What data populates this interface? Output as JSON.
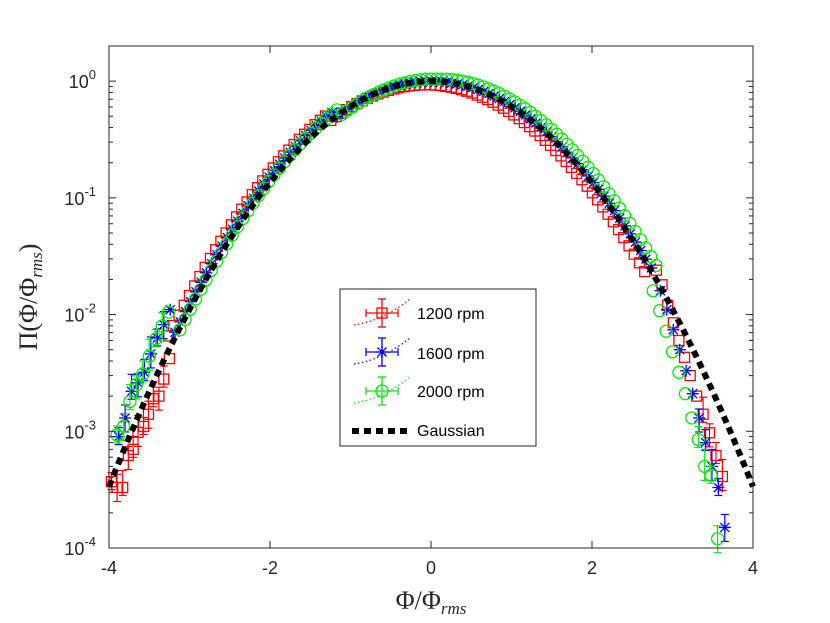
{
  "chart_data": {
    "type": "scatter",
    "title": "",
    "xlabel": "Φ/Φ_rms",
    "xlabel_main": "Φ/Φ",
    "xlabel_sub": "rms",
    "ylabel": "Π(Φ/Φ_rms)",
    "ylabel_main": "Π(Φ/Φ",
    "ylabel_sub": "rms",
    "ylabel_close": ")",
    "xlim": [
      -4,
      4
    ],
    "ylim": [
      0.0001,
      2
    ],
    "yscale": "log",
    "xticks": [
      {
        "value": -4,
        "label": "-4"
      },
      {
        "value": -2,
        "label": "-2"
      },
      {
        "value": 0,
        "label": "0"
      },
      {
        "value": 2,
        "label": "2"
      },
      {
        "value": 4,
        "label": "4"
      }
    ],
    "yticks": [
      {
        "value": 0.0001,
        "base": "10",
        "exp": "-4"
      },
      {
        "value": 0.001,
        "base": "10",
        "exp": "-3"
      },
      {
        "value": 0.01,
        "base": "10",
        "exp": "-2"
      },
      {
        "value": 0.1,
        "base": "10",
        "exp": "-1"
      },
      {
        "value": 1,
        "base": "10",
        "exp": "0"
      }
    ],
    "legend_position": "center",
    "series": [
      {
        "name": "1200 rpm",
        "label": "1200 rpm",
        "color": "#ff0000",
        "marker": "square",
        "x_offset": -0.06,
        "y_factor": 0.93,
        "extra_points": [
          {
            "x": -3.97,
            "y": 0.00037
          },
          {
            "x": -3.9,
            "y": 0.00033
          },
          {
            "x": -3.83,
            "y": 0.00033
          },
          {
            "x": -3.76,
            "y": 0.00062
          },
          {
            "x": -3.7,
            "y": 0.0007
          },
          {
            "x": -3.64,
            "y": 0.00098
          },
          {
            "x": -3.57,
            "y": 0.0011
          },
          {
            "x": -3.51,
            "y": 0.0014
          },
          {
            "x": -3.45,
            "y": 0.0019
          },
          {
            "x": -3.38,
            "y": 0.002
          },
          {
            "x": -3.32,
            "y": 0.0028
          },
          {
            "x": -3.25,
            "y": 0.0042
          },
          {
            "x": 2.8,
            "y": 0.024
          },
          {
            "x": 2.87,
            "y": 0.018
          },
          {
            "x": 2.94,
            "y": 0.012
          },
          {
            "x": 3.01,
            "y": 0.0085
          },
          {
            "x": 3.08,
            "y": 0.006
          },
          {
            "x": 3.15,
            "y": 0.0043
          },
          {
            "x": 3.22,
            "y": 0.003
          },
          {
            "x": 3.3,
            "y": 0.002
          },
          {
            "x": 3.38,
            "y": 0.0014
          },
          {
            "x": 3.46,
            "y": 0.00097
          },
          {
            "x": 3.54,
            "y": 0.00062
          },
          {
            "x": 3.62,
            "y": 0.00041
          }
        ]
      },
      {
        "name": "1600 rpm",
        "label": "1600 rpm",
        "color": "#0000ff",
        "marker": "asterisk",
        "x_offset": 0.02,
        "y_factor": 1.0,
        "extra_points": [
          {
            "x": -3.88,
            "y": 0.0009
          },
          {
            "x": -3.8,
            "y": 0.0013
          },
          {
            "x": -3.72,
            "y": 0.0022
          },
          {
            "x": -3.64,
            "y": 0.0026
          },
          {
            "x": -3.56,
            "y": 0.0032
          },
          {
            "x": -3.48,
            "y": 0.0046
          },
          {
            "x": -3.4,
            "y": 0.0063
          },
          {
            "x": -3.32,
            "y": 0.0082
          },
          {
            "x": -3.24,
            "y": 0.011
          },
          {
            "x": 2.85,
            "y": 0.016
          },
          {
            "x": 2.93,
            "y": 0.011
          },
          {
            "x": 3.01,
            "y": 0.0074
          },
          {
            "x": 3.09,
            "y": 0.005
          },
          {
            "x": 3.17,
            "y": 0.0033
          },
          {
            "x": 3.25,
            "y": 0.0021
          },
          {
            "x": 3.33,
            "y": 0.0013
          },
          {
            "x": 3.41,
            "y": 0.0008
          },
          {
            "x": 3.49,
            "y": 0.0005
          },
          {
            "x": 3.57,
            "y": 0.00033
          },
          {
            "x": 3.65,
            "y": 0.00015
          }
        ]
      },
      {
        "name": "2000 rpm",
        "label": "2000 rpm",
        "color": "#00ee00",
        "marker": "circle",
        "x_offset": 0.08,
        "y_factor": 1.05,
        "extra_points": [
          {
            "x": -3.9,
            "y": 0.00093
          },
          {
            "x": -3.82,
            "y": 0.0011
          },
          {
            "x": -3.74,
            "y": 0.0018
          },
          {
            "x": -3.66,
            "y": 0.0025
          },
          {
            "x": -3.58,
            "y": 0.0031
          },
          {
            "x": -3.5,
            "y": 0.0044
          },
          {
            "x": -3.42,
            "y": 0.0062
          },
          {
            "x": -3.34,
            "y": 0.008
          },
          {
            "x": -3.26,
            "y": 0.0105
          },
          {
            "x": 2.76,
            "y": 0.016
          },
          {
            "x": 2.84,
            "y": 0.0108
          },
          {
            "x": 2.92,
            "y": 0.0072
          },
          {
            "x": 3.0,
            "y": 0.0048
          },
          {
            "x": 3.08,
            "y": 0.0032
          },
          {
            "x": 3.16,
            "y": 0.0021
          },
          {
            "x": 3.24,
            "y": 0.0013
          },
          {
            "x": 3.32,
            "y": 0.00085
          },
          {
            "x": 3.4,
            "y": 0.0005
          },
          {
            "x": 3.48,
            "y": 0.00042
          },
          {
            "x": 3.56,
            "y": 0.00012
          }
        ]
      },
      {
        "name": "Gaussian",
        "label": "Gaussian",
        "color": "#000000",
        "marker": "dashed-line",
        "formula": "exp(-x^2/2)",
        "x_range": [
          -4,
          4
        ]
      }
    ]
  }
}
